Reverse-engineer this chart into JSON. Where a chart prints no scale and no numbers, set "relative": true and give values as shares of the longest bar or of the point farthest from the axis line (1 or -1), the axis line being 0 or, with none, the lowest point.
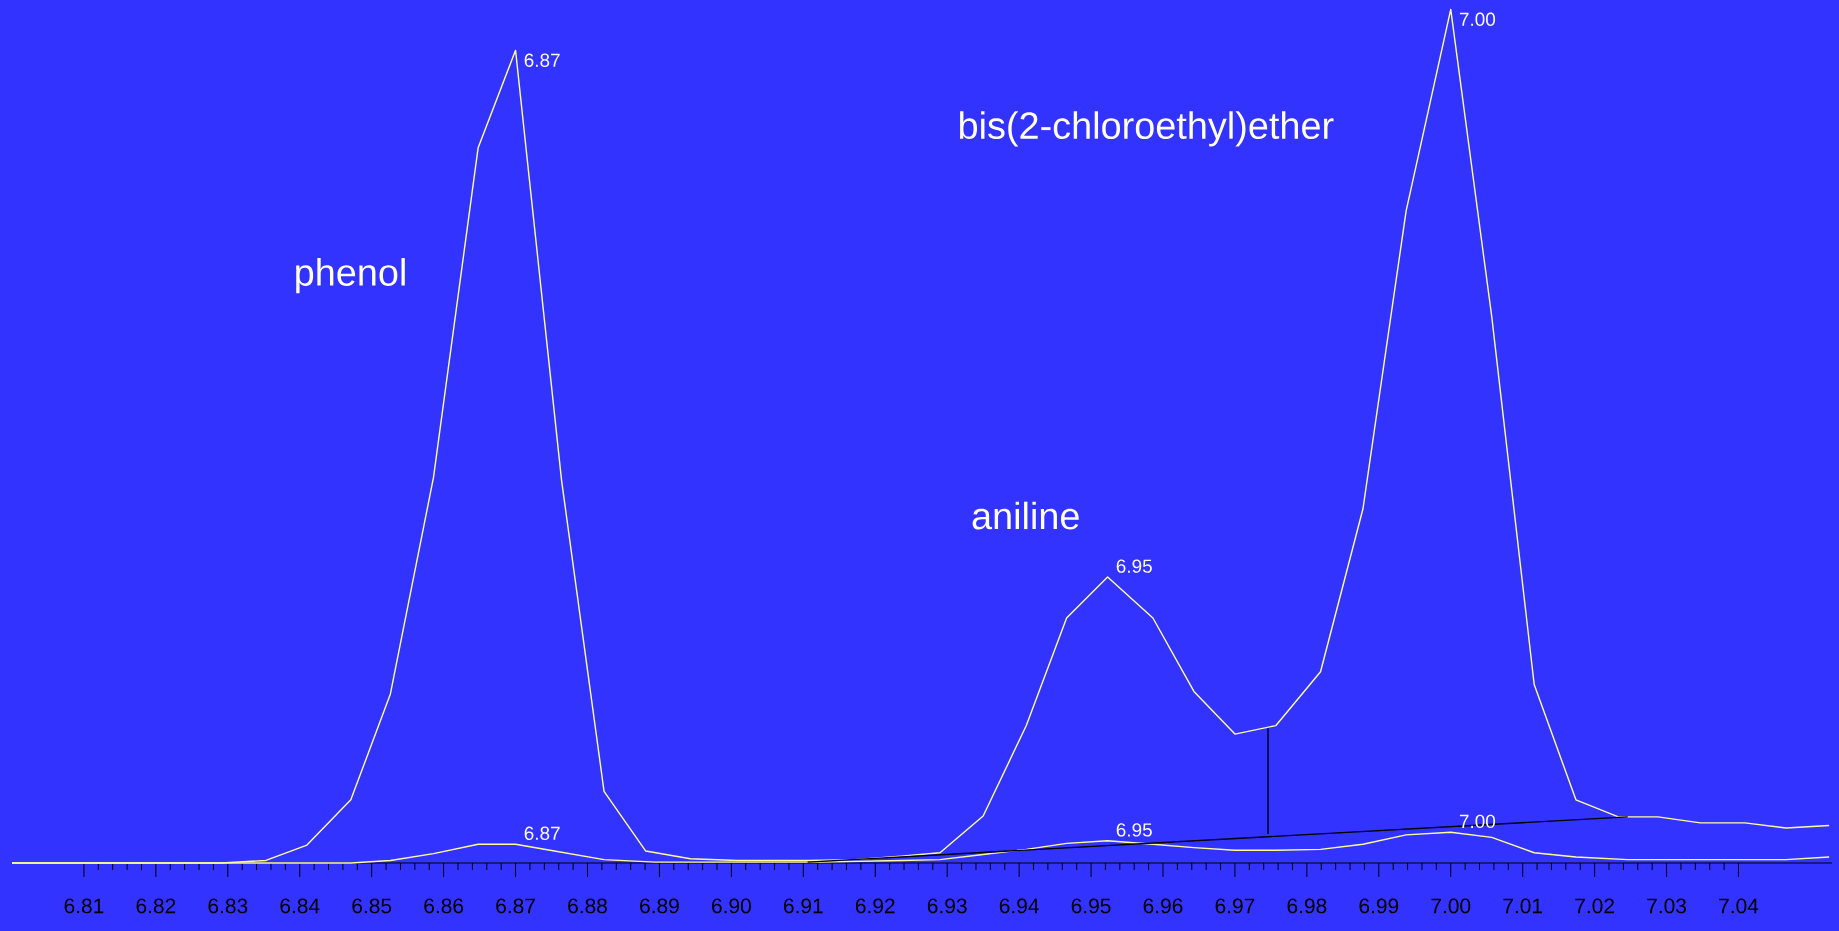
{
  "chart_data": {
    "type": "line",
    "relative": true,
    "xlim": [
      6.8,
      7.053
    ],
    "xticks": [
      6.81,
      6.82,
      6.83,
      6.84,
      6.85,
      6.86,
      6.87,
      6.88,
      6.89,
      {
        "value": 6.9,
        "label": "6.90"
      },
      6.91,
      6.92,
      6.93,
      6.94,
      6.95,
      6.96,
      6.97,
      6.98,
      6.99,
      {
        "value": 7.0,
        "label": "7.00"
      },
      7.01,
      7.02,
      7.03,
      7.04
    ],
    "annotations": [
      "phenol",
      "aniline",
      "bis(2-chloroethyl)ether",
      {
        "text": "6.87",
        "x": 6.87,
        "y": 0.952
      },
      {
        "text": "6.95",
        "x": 6.9523,
        "y": 0.335
      },
      {
        "text": "7.00",
        "x": 7.0,
        "y": 1
      },
      {
        "text": "6.87",
        "x": 6.87,
        "y": 0.022
      },
      {
        "text": "6.95",
        "x": 6.9523,
        "y": 0.026
      },
      {
        "text": "7.00",
        "x": 7.0,
        "y": 0.036
      }
    ],
    "series": [
      {
        "color": "#ffff99",
        "x": [
          6.8,
          6.8291,
          6.8353,
          6.841,
          6.8471,
          6.8526,
          6.8586,
          6.8648,
          6.87,
          6.8764,
          6.8823,
          6.8881,
          6.8943,
          6.9008,
          6.9106,
          6.9171,
          6.9236,
          6.929,
          6.935,
          6.941,
          6.9466,
          6.9523,
          6.9586,
          6.9643,
          6.97,
          6.9757,
          6.9819,
          6.9878,
          6.9938,
          7.0,
          7.0057,
          7.0116,
          7.0174,
          7.0233,
          7.0288,
          7.0347,
          7.0409,
          7.0466,
          7.0526
        ],
        "values": [
          0,
          0,
          0.003,
          0.021,
          0.074,
          0.198,
          0.452,
          0.838,
          0.952,
          0.448,
          0.084,
          0.014,
          0.005,
          0.003,
          0.003,
          0.004,
          0.008,
          0.012,
          0.055,
          0.161,
          0.287,
          0.335,
          0.287,
          0.201,
          0.151,
          0.161,
          0.224,
          0.415,
          0.764,
          1,
          0.64,
          0.209,
          0.074,
          0.054,
          0.054,
          0.047,
          0.047,
          0.041,
          0.044
        ]
      },
      {
        "color": "#ffff99",
        "x": [
          6.8,
          6.8471,
          6.8526,
          6.8586,
          6.8648,
          6.87,
          6.8748,
          6.8823,
          6.8894,
          6.9122,
          6.9236,
          6.929,
          6.935,
          6.941,
          6.9466,
          6.9523,
          6.9586,
          6.9643,
          6.97,
          6.9757,
          6.9819,
          6.9878,
          6.9938,
          7.0,
          7.0057,
          7.0116,
          7.0174,
          7.0246,
          7.0344,
          7.0466,
          7.0526
        ],
        "values": [
          0,
          0,
          0.003,
          0.011,
          0.022,
          0.022,
          0.015,
          0.004,
          0.001,
          0.001,
          0.003,
          0.004,
          0.01,
          0.016,
          0.023,
          0.026,
          0.022,
          0.018,
          0.015,
          0.015,
          0.016,
          0.022,
          0.033,
          0.036,
          0.03,
          0.012,
          0.007,
          0.004,
          0.004,
          0.004,
          0.007
        ]
      },
      {
        "color": "#000000",
        "x": [
          6.9106,
          7.0246
        ],
        "values": [
          0.001,
          0.054
        ]
      },
      {
        "color": "#000000",
        "x": [
          6.9746,
          6.9746
        ],
        "values": [
          0.034,
          0.158
        ]
      }
    ]
  }
}
